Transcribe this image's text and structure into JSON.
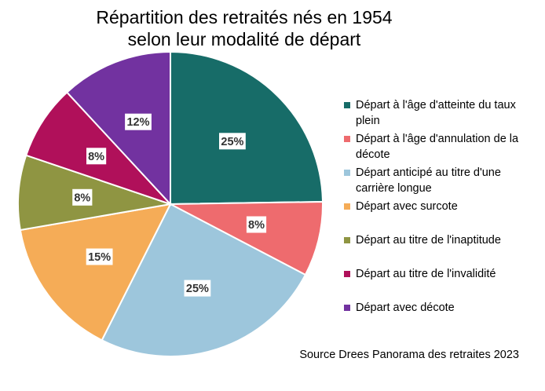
{
  "chart_data": {
    "type": "pie",
    "title_line1": "Répartition des retraités nés en 1954",
    "title_line2": "selon leur modalité de départ",
    "legend_position": "right",
    "slices": [
      {
        "label": "Départ à l'âge d'atteinte du taux plein",
        "value": 25,
        "display": "25%",
        "color": "#176C68"
      },
      {
        "label": "Départ à l'âge d'annulation de la décote",
        "value": 8,
        "display": "8%",
        "color": "#EE6B6E"
      },
      {
        "label": "Départ anticipé au titre d'une carrière longue",
        "value": 25,
        "display": "25%",
        "color": "#9DC6DC"
      },
      {
        "label": "Départ avec surcote",
        "value": 15,
        "display": "15%",
        "color": "#F5AC57"
      },
      {
        "label": "Départ au titre de l'inaptitude",
        "value": 8,
        "display": "8%",
        "color": "#8F9542"
      },
      {
        "label": "Départ au titre de l'invalidité",
        "value": 8,
        "display": "8%",
        "color": "#B0105A"
      },
      {
        "label": "Départ avec décote",
        "value": 12,
        "display": "12%",
        "color": "#7232A0"
      }
    ],
    "source": "Source Drees Panorama des retraites 2023"
  }
}
